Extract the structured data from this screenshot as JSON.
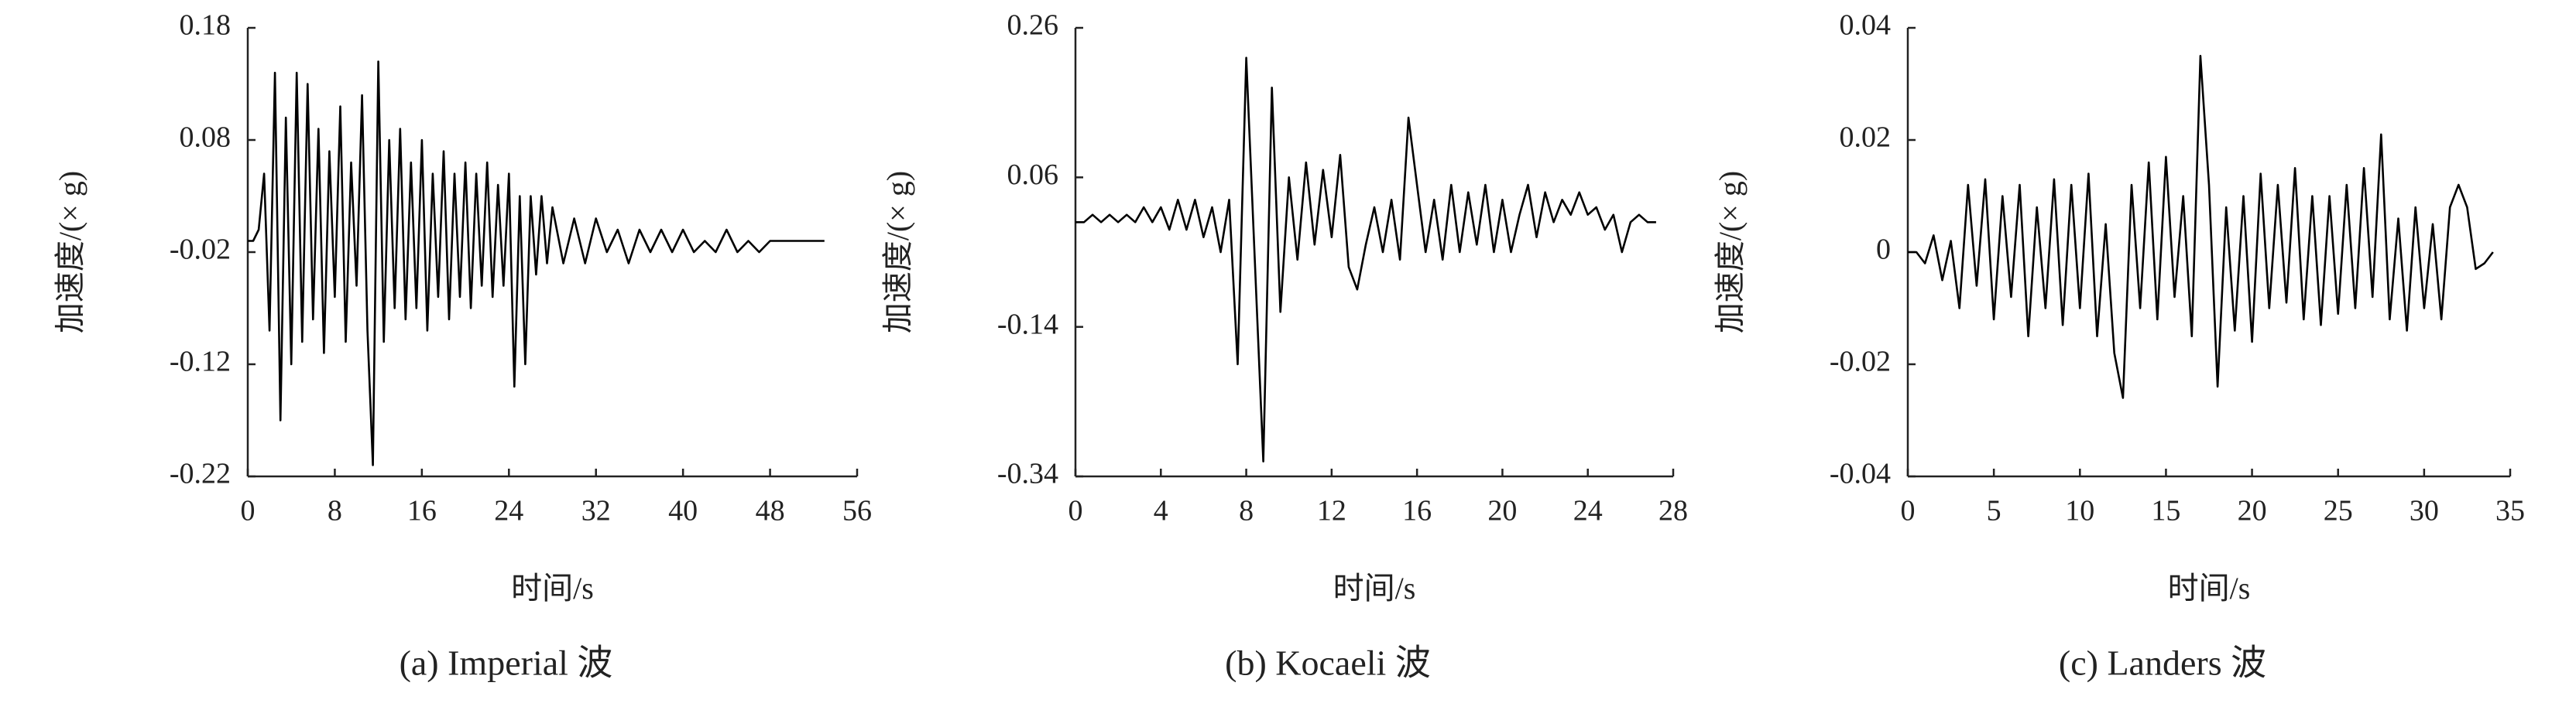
{
  "chart_data": [
    {
      "type": "line",
      "caption": "(a) Imperial 波",
      "xlabel": "时间/s",
      "ylabel": "加速度/(× g)",
      "color": "#000000",
      "x": [
        0,
        0.5,
        1,
        1.5,
        2,
        2.5,
        3,
        3.5,
        4,
        4.5,
        5,
        5.5,
        6,
        6.5,
        7,
        7.5,
        8,
        8.5,
        9,
        9.5,
        10,
        10.5,
        11,
        11.5,
        12,
        12.5,
        13,
        13.5,
        14,
        14.5,
        15,
        15.5,
        16,
        16.5,
        17,
        17.5,
        18,
        18.5,
        19,
        19.5,
        20,
        20.5,
        21,
        21.5,
        22,
        22.5,
        23,
        23.5,
        24,
        24.5,
        25,
        25.5,
        26,
        26.5,
        27,
        27.5,
        28,
        29,
        30,
        31,
        32,
        33,
        34,
        35,
        36,
        37,
        38,
        39,
        40,
        41,
        42,
        43,
        44,
        45,
        46,
        47,
        48,
        49,
        50,
        51,
        52,
        53
      ],
      "values": [
        -0.01,
        -0.01,
        0,
        0.05,
        -0.09,
        0.14,
        -0.17,
        0.1,
        -0.12,
        0.14,
        -0.1,
        0.13,
        -0.08,
        0.09,
        -0.11,
        0.07,
        -0.06,
        0.11,
        -0.1,
        0.06,
        -0.05,
        0.12,
        -0.09,
        -0.21,
        0.15,
        -0.1,
        0.08,
        -0.07,
        0.09,
        -0.08,
        0.06,
        -0.07,
        0.08,
        -0.09,
        0.05,
        -0.06,
        0.07,
        -0.08,
        0.05,
        -0.06,
        0.06,
        -0.07,
        0.05,
        -0.05,
        0.06,
        -0.06,
        0.04,
        -0.05,
        0.05,
        -0.14,
        0.03,
        -0.12,
        0.03,
        -0.04,
        0.03,
        -0.03,
        0.02,
        -0.03,
        0.01,
        -0.03,
        0.01,
        -0.02,
        0,
        -0.03,
        0,
        -0.02,
        0,
        -0.02,
        0,
        -0.02,
        -0.01,
        -0.02,
        0,
        -0.02,
        -0.01,
        -0.02,
        -0.01,
        -0.01,
        -0.01,
        -0.01,
        -0.01,
        -0.01
      ],
      "xlim": [
        0,
        56
      ],
      "xticks": [
        0,
        8,
        16,
        24,
        32,
        40,
        48,
        56
      ],
      "ylim": [
        -0.22,
        0.18
      ],
      "yticks": [
        0.18,
        0.08,
        -0.02,
        -0.12,
        -0.22
      ]
    },
    {
      "type": "line",
      "caption": "(b) Kocaeli 波",
      "xlabel": "时间/s",
      "ylabel": "加速度/(× g)",
      "color": "#000000",
      "x": [
        0,
        0.4,
        0.8,
        1.2,
        1.6,
        2,
        2.4,
        2.8,
        3.2,
        3.6,
        4,
        4.4,
        4.8,
        5.2,
        5.6,
        6,
        6.4,
        6.8,
        7.2,
        7.6,
        8,
        8.4,
        8.8,
        9.2,
        9.6,
        10,
        10.4,
        10.8,
        11.2,
        11.6,
        12,
        12.4,
        12.8,
        13.2,
        13.6,
        14,
        14.4,
        14.8,
        15.2,
        15.6,
        16,
        16.4,
        16.8,
        17.2,
        17.6,
        18,
        18.4,
        18.8,
        19.2,
        19.6,
        20,
        20.4,
        20.8,
        21.2,
        21.6,
        22,
        22.4,
        22.8,
        23.2,
        23.6,
        24,
        24.4,
        24.8,
        25.2,
        25.6,
        26,
        26.4,
        26.8,
        27.2
      ],
      "values": [
        0,
        0,
        0.01,
        0,
        0.01,
        0,
        0.01,
        0,
        0.02,
        0,
        0.02,
        -0.01,
        0.03,
        -0.01,
        0.03,
        -0.02,
        0.02,
        -0.04,
        0.03,
        -0.19,
        0.22,
        -0.05,
        -0.32,
        0.18,
        -0.12,
        0.06,
        -0.05,
        0.08,
        -0.03,
        0.07,
        -0.02,
        0.09,
        -0.06,
        -0.09,
        -0.03,
        0.02,
        -0.04,
        0.03,
        -0.05,
        0.14,
        0.05,
        -0.04,
        0.03,
        -0.05,
        0.05,
        -0.04,
        0.04,
        -0.03,
        0.05,
        -0.04,
        0.03,
        -0.04,
        0.01,
        0.05,
        -0.02,
        0.04,
        0,
        0.03,
        0.01,
        0.04,
        0.01,
        0.02,
        -0.01,
        0.01,
        -0.04,
        0,
        0.01,
        0,
        0
      ],
      "xlim": [
        0,
        28
      ],
      "xticks": [
        0,
        4,
        8,
        12,
        16,
        20,
        24,
        28
      ],
      "ylim": [
        -0.34,
        0.26
      ],
      "yticks": [
        0.26,
        0.06,
        -0.14,
        -0.34
      ]
    },
    {
      "type": "line",
      "caption": "(c) Landers 波",
      "xlabel": "时间/s",
      "ylabel": "加速度/(× g)",
      "color": "#000000",
      "x": [
        0,
        0.5,
        1,
        1.5,
        2,
        2.5,
        3,
        3.5,
        4,
        4.5,
        5,
        5.5,
        6,
        6.5,
        7,
        7.5,
        8,
        8.5,
        9,
        9.5,
        10,
        10.5,
        11,
        11.5,
        12,
        12.5,
        13,
        13.5,
        14,
        14.5,
        15,
        15.5,
        16,
        16.5,
        17,
        17.5,
        18,
        18.5,
        19,
        19.5,
        20,
        20.5,
        21,
        21.5,
        22,
        22.5,
        23,
        23.5,
        24,
        24.5,
        25,
        25.5,
        26,
        26.5,
        27,
        27.5,
        28,
        28.5,
        29,
        29.5,
        30,
        30.5,
        31,
        31.5,
        32,
        32.5,
        33,
        33.5,
        34
      ],
      "values": [
        0,
        0,
        -0.002,
        0.003,
        -0.005,
        0.002,
        -0.01,
        0.012,
        -0.006,
        0.013,
        -0.012,
        0.01,
        -0.008,
        0.012,
        -0.015,
        0.008,
        -0.01,
        0.013,
        -0.013,
        0.012,
        -0.01,
        0.014,
        -0.015,
        0.005,
        -0.018,
        -0.026,
        0.012,
        -0.01,
        0.016,
        -0.012,
        0.017,
        -0.008,
        0.01,
        -0.015,
        0.035,
        0.012,
        -0.024,
        0.008,
        -0.014,
        0.01,
        -0.016,
        0.014,
        -0.01,
        0.012,
        -0.009,
        0.015,
        -0.012,
        0.01,
        -0.013,
        0.01,
        -0.011,
        0.012,
        -0.01,
        0.015,
        -0.008,
        0.021,
        -0.012,
        0.006,
        -0.014,
        0.008,
        -0.01,
        0.005,
        -0.012,
        0.008,
        0.012,
        0.008,
        -0.003,
        -0.002,
        0
      ],
      "xlim": [
        0,
        35
      ],
      "xticks": [
        0,
        5,
        10,
        15,
        20,
        25,
        30,
        35
      ],
      "ylim": [
        -0.04,
        0.04
      ],
      "yticks": [
        0.04,
        0.02,
        0,
        -0.02,
        -0.04
      ]
    }
  ]
}
